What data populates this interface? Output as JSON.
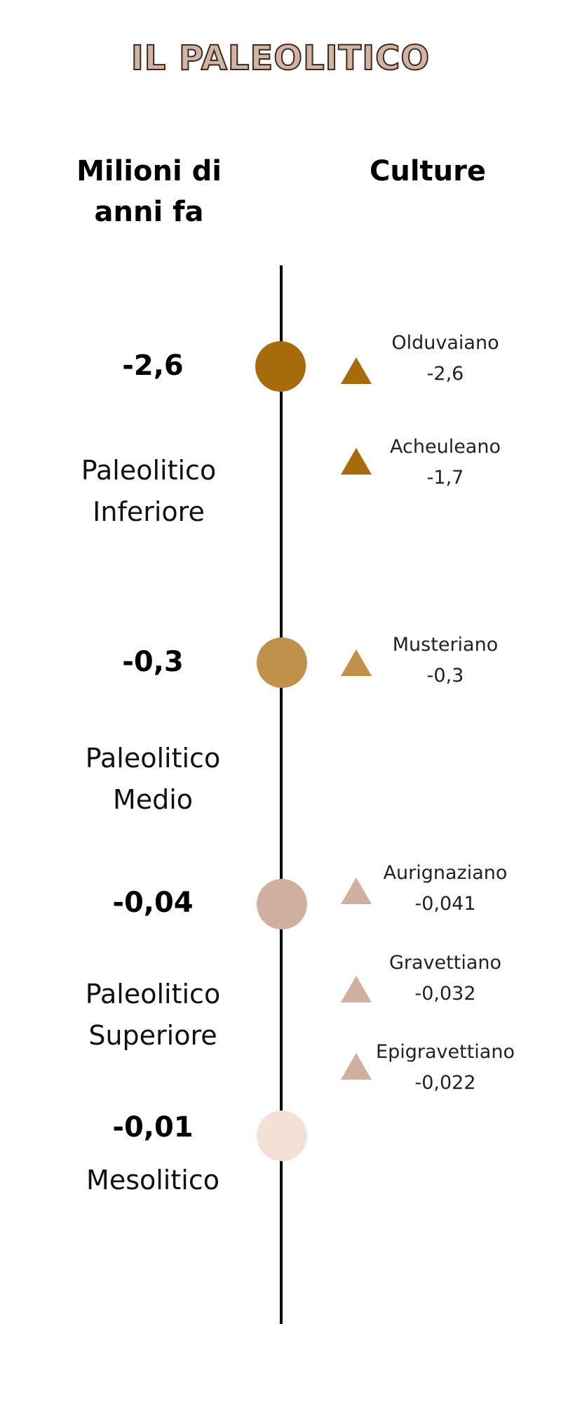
{
  "title": "IL PALEOLITICO",
  "headers": {
    "left": "Milioni di anni fa",
    "right": "Culture"
  },
  "colors": {
    "dark_brown": "#a56b0c",
    "ochre": "#c0914b",
    "taupe": "#d0afa0",
    "pale_pink": "#f3e0d6",
    "axis": "#000000"
  },
  "dates": {
    "d1": "-2,6",
    "d2": "-0,3",
    "d3": "-0,04",
    "d4": "-0,01"
  },
  "periods": {
    "inferiore": {
      "line1": "Paleolitico",
      "line2": "Inferiore"
    },
    "medio": {
      "line1": "Paleolitico",
      "line2": "Medio"
    },
    "superiore": {
      "line1": "Paleolitico",
      "line2": "Superiore"
    },
    "mesolitico": "Mesolitico"
  },
  "cultures": [
    {
      "name": "Olduvaiano",
      "date": "-2,6"
    },
    {
      "name": "Acheuleano",
      "date": "-1,7"
    },
    {
      "name": "Musteriano",
      "date": "-0,3"
    },
    {
      "name": "Aurignaziano",
      "date": "-0,041"
    },
    {
      "name": "Gravettiano",
      "date": "-0,032"
    },
    {
      "name": "Epigravettiano",
      "date": "-0,022"
    }
  ]
}
